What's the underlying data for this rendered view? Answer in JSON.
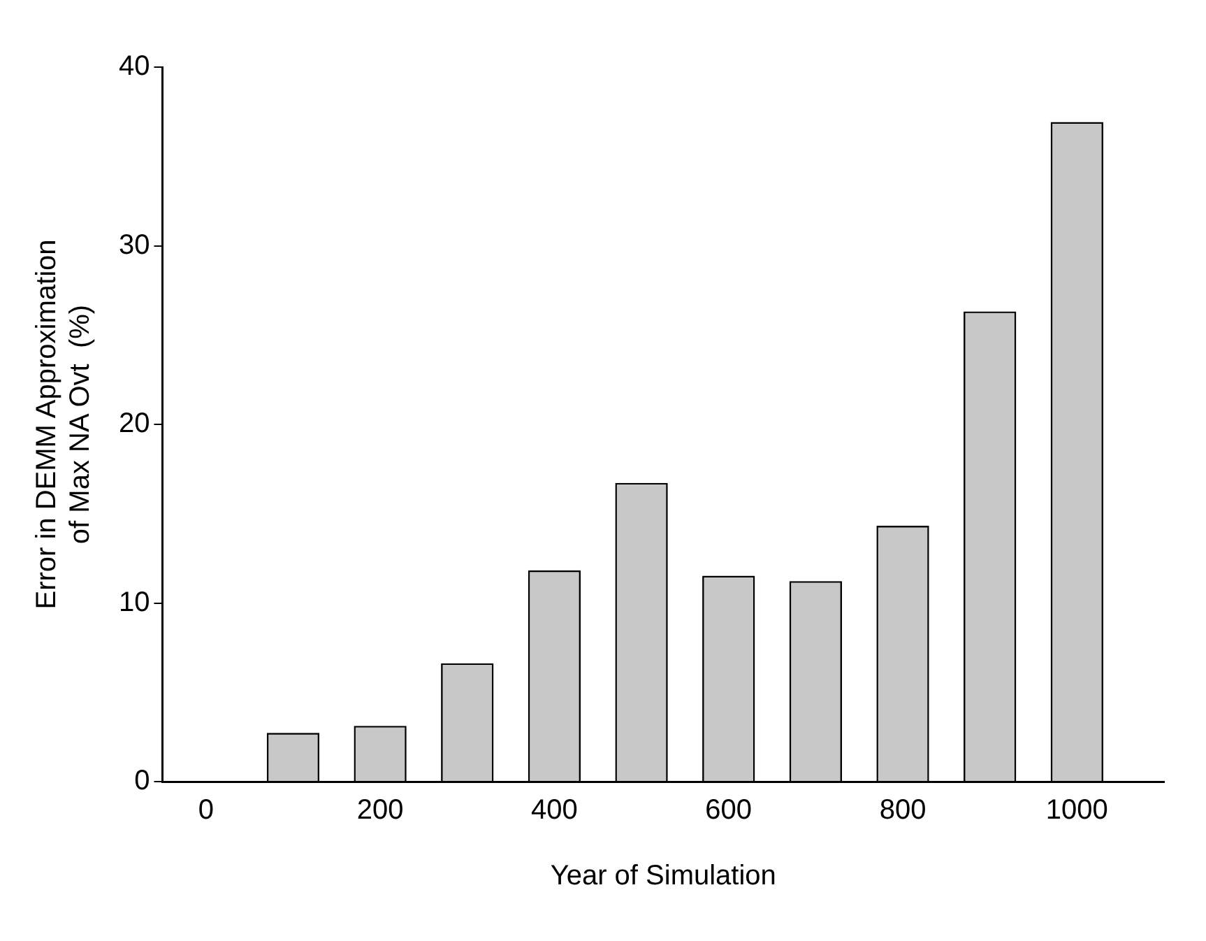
{
  "chart_data": {
    "type": "bar",
    "xlabel": "Year of Simulation",
    "ylabel": "Error in DEMM Approximation of Max NA Ovt  (%)",
    "x": [
      100,
      200,
      300,
      400,
      500,
      600,
      700,
      800,
      900,
      1000
    ],
    "values": [
      2.7,
      3.1,
      6.6,
      11.8,
      16.7,
      11.5,
      11.2,
      14.3,
      26.3,
      36.9
    ],
    "color": "#c8c8c8",
    "xlim": [
      -50,
      1100
    ],
    "xticks": [
      0,
      200,
      400,
      600,
      800,
      1000
    ],
    "ylim": [
      0,
      40
    ],
    "yticks": [
      0,
      10,
      20,
      30,
      40
    ],
    "grid": false,
    "legend": false
  }
}
